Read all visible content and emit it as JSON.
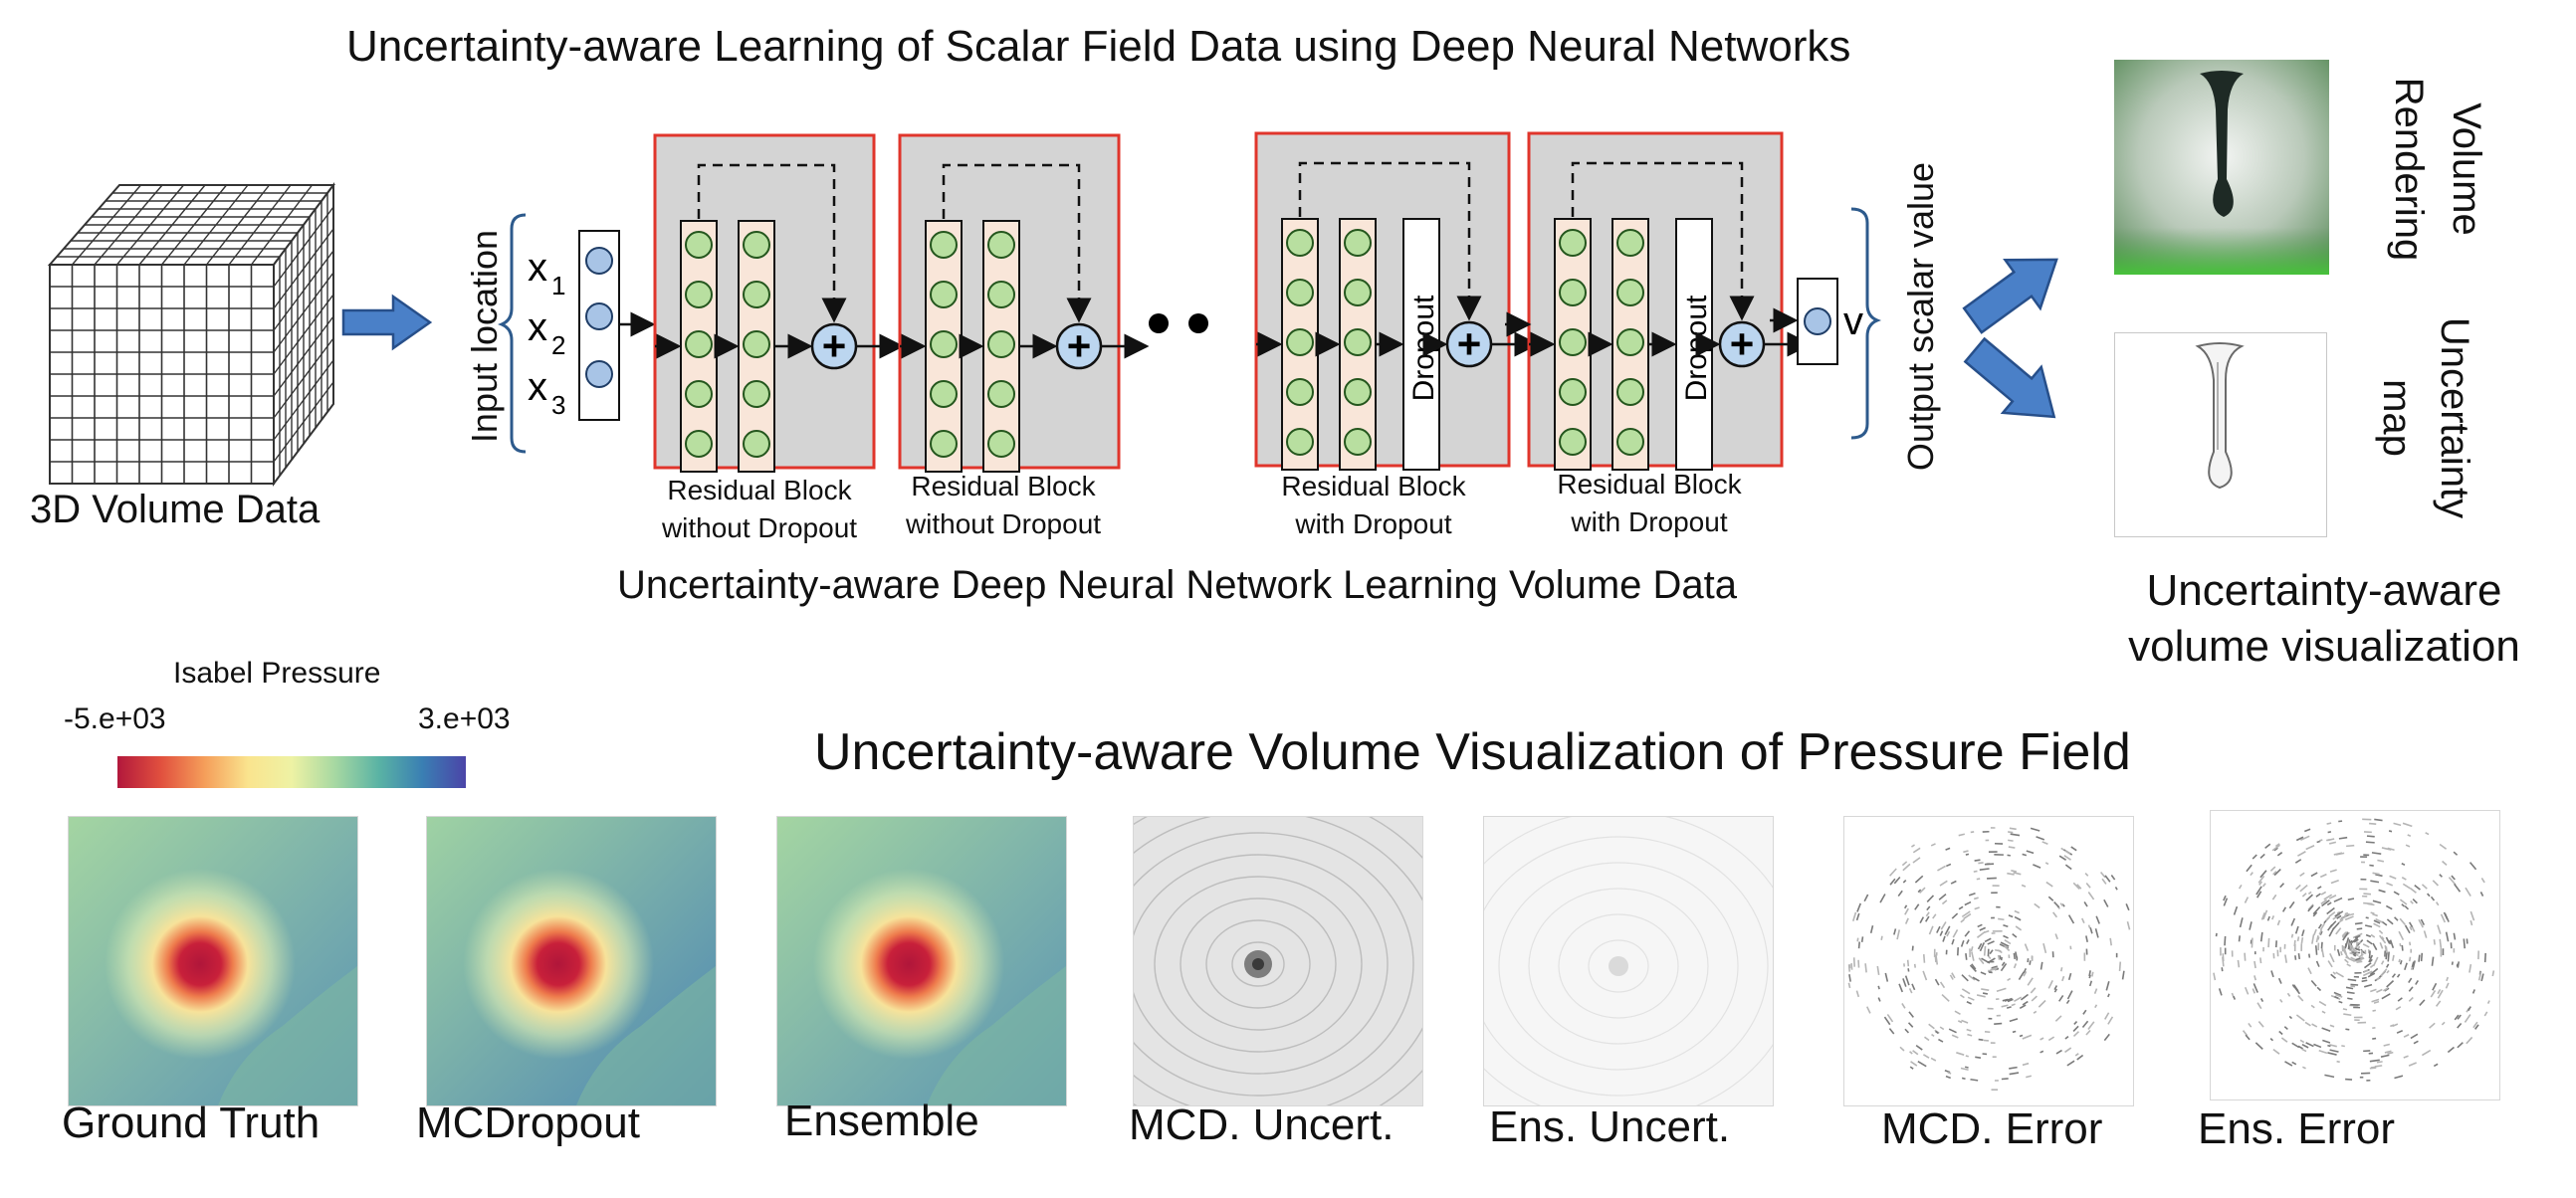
{
  "top_title": "Uncertainty-aware Learning of Scalar Field Data using Deep Neural Networks",
  "input": {
    "caption": "3D Volume Data"
  },
  "network": {
    "input_axis_label": "Input location",
    "inputs": [
      "x1",
      "x2",
      "x3"
    ],
    "output_label": "v",
    "output_axis_label": "Output scalar value",
    "blocks": [
      {
        "line1": "Residual Block",
        "line2": "without Dropout",
        "dropout": false
      },
      {
        "line1": "Residual Block",
        "line2": "without Dropout",
        "dropout": false
      },
      {
        "line1": "Residual Block",
        "line2": "with Dropout",
        "dropout": true
      },
      {
        "line1": "Residual Block",
        "line2": "with Dropout",
        "dropout": true
      }
    ],
    "dropout_label": "Dropout",
    "plus_symbol": "+",
    "caption": "Uncertainty-aware Deep Neural Network Learning Volume Data"
  },
  "outputs": {
    "volume_rendering_label": [
      "Volume",
      "Rendering"
    ],
    "uncertainty_map_label": [
      "Uncertainty",
      "map"
    ],
    "caption_line1": "Uncertainty-aware",
    "caption_line2": "volume visualization"
  },
  "colorbar": {
    "title": "Isabel Pressure",
    "min_label": "-5.e+03",
    "max_label": "3.e+03",
    "colors": [
      "#b2183c",
      "#e1503e",
      "#f59e5a",
      "#fae48e",
      "#eef2a4",
      "#a6d8a2",
      "#5ab3a4",
      "#3a7fb3",
      "#4b44a8"
    ]
  },
  "bottom_title": "Uncertainty-aware Volume Visualization of Pressure Field",
  "panels": [
    {
      "label": "Ground Truth",
      "kind": "color"
    },
    {
      "label": "MCDropout",
      "kind": "color"
    },
    {
      "label": "Ensemble",
      "kind": "color"
    },
    {
      "label": "MCD. Uncert.",
      "kind": "gray"
    },
    {
      "label": "Ens. Uncert.",
      "kind": "faint"
    },
    {
      "label": "MCD. Error",
      "kind": "error"
    },
    {
      "label": "Ens. Error",
      "kind": "error"
    }
  ]
}
